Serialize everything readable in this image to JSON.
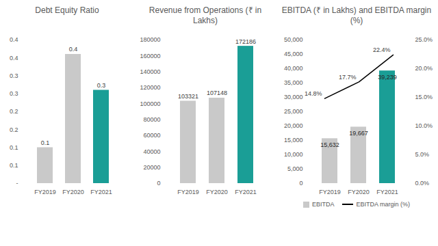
{
  "chart_data": [
    {
      "type": "bar",
      "title": "Debt Equity Ratio",
      "categories": [
        "FY2019",
        "FY2020",
        "FY2021"
      ],
      "values": [
        0.1,
        0.36,
        0.26
      ],
      "value_labels": [
        "0.1",
        "0.4",
        "0.3"
      ],
      "colors": [
        "#c9c9c9",
        "#c9c9c9",
        "#1a9e96"
      ],
      "ylim": [
        0,
        0.4
      ],
      "yticks": [
        {
          "value": 0,
          "label": "-"
        },
        {
          "value": 0.05,
          "label": "0.1"
        },
        {
          "value": 0.1,
          "label": "0.1"
        },
        {
          "value": 0.15,
          "label": "0.2"
        },
        {
          "value": 0.2,
          "label": "0.2"
        },
        {
          "value": 0.25,
          "label": "0.3"
        },
        {
          "value": 0.3,
          "label": "0.3"
        },
        {
          "value": 0.35,
          "label": "0.4"
        },
        {
          "value": 0.4,
          "label": "0.4"
        }
      ],
      "data_labels": true,
      "grid": false
    },
    {
      "type": "bar",
      "title": "Revenue from Operations (₹ in Lakhs)",
      "categories": [
        "FY2019",
        "FY2020",
        "FY2021"
      ],
      "values": [
        103321,
        107148,
        172186
      ],
      "colors": [
        "#c9c9c9",
        "#c9c9c9",
        "#1a9e96"
      ],
      "ylim": [
        0,
        180000
      ],
      "yticks": [
        0,
        20000,
        40000,
        60000,
        80000,
        100000,
        120000,
        140000,
        160000,
        180000
      ],
      "data_labels": true,
      "grid": false
    },
    {
      "type": "bar",
      "title": "EBITDA (₹ in Lakhs) and EBITDA margin (%)",
      "categories": [
        "FY2019",
        "FY2020",
        "FY2021"
      ],
      "series": [
        {
          "name": "EBITDA",
          "type": "bar",
          "colors": [
            "#c9c9c9",
            "#c9c9c9",
            "#1a9e96"
          ],
          "values": [
            15632,
            19667,
            39239
          ],
          "value_labels": [
            "15,632",
            "19,667",
            "39,239"
          ]
        },
        {
          "name": "EBITDA margin (%)",
          "type": "line",
          "axis": "y2",
          "color": "#000000",
          "values": [
            14.8,
            17.7,
            22.4
          ],
          "value_labels": [
            "14.8%",
            "17.7%",
            "22.4%"
          ]
        }
      ],
      "ylim": [
        0,
        50000
      ],
      "yticks": [
        0,
        {
          "value": 5000,
          "label": "5,000"
        },
        {
          "value": 10000,
          "label": "10,000"
        },
        {
          "value": 15000,
          "label": "15,000"
        },
        {
          "value": 20000,
          "label": "20,000"
        },
        {
          "value": 25000,
          "label": "25,000"
        },
        {
          "value": 30000,
          "label": "30,000"
        },
        {
          "value": 35000,
          "label": "35,000"
        },
        {
          "value": 40000,
          "label": "40,000"
        },
        {
          "value": 45000,
          "label": "45,000"
        },
        {
          "value": 50000,
          "label": "50,000"
        }
      ],
      "y2lim": [
        0,
        25
      ],
      "y2ticks": [
        {
          "value": 0,
          "label": "0.0%"
        },
        {
          "value": 5,
          "label": "5.0%"
        },
        {
          "value": 10,
          "label": "10.0%"
        },
        {
          "value": 15,
          "label": "15.0%"
        },
        {
          "value": 20,
          "label": "20.0%"
        },
        {
          "value": 25,
          "label": "25.0%"
        }
      ],
      "data_labels": true,
      "legend": "bottom",
      "grid": false
    }
  ]
}
